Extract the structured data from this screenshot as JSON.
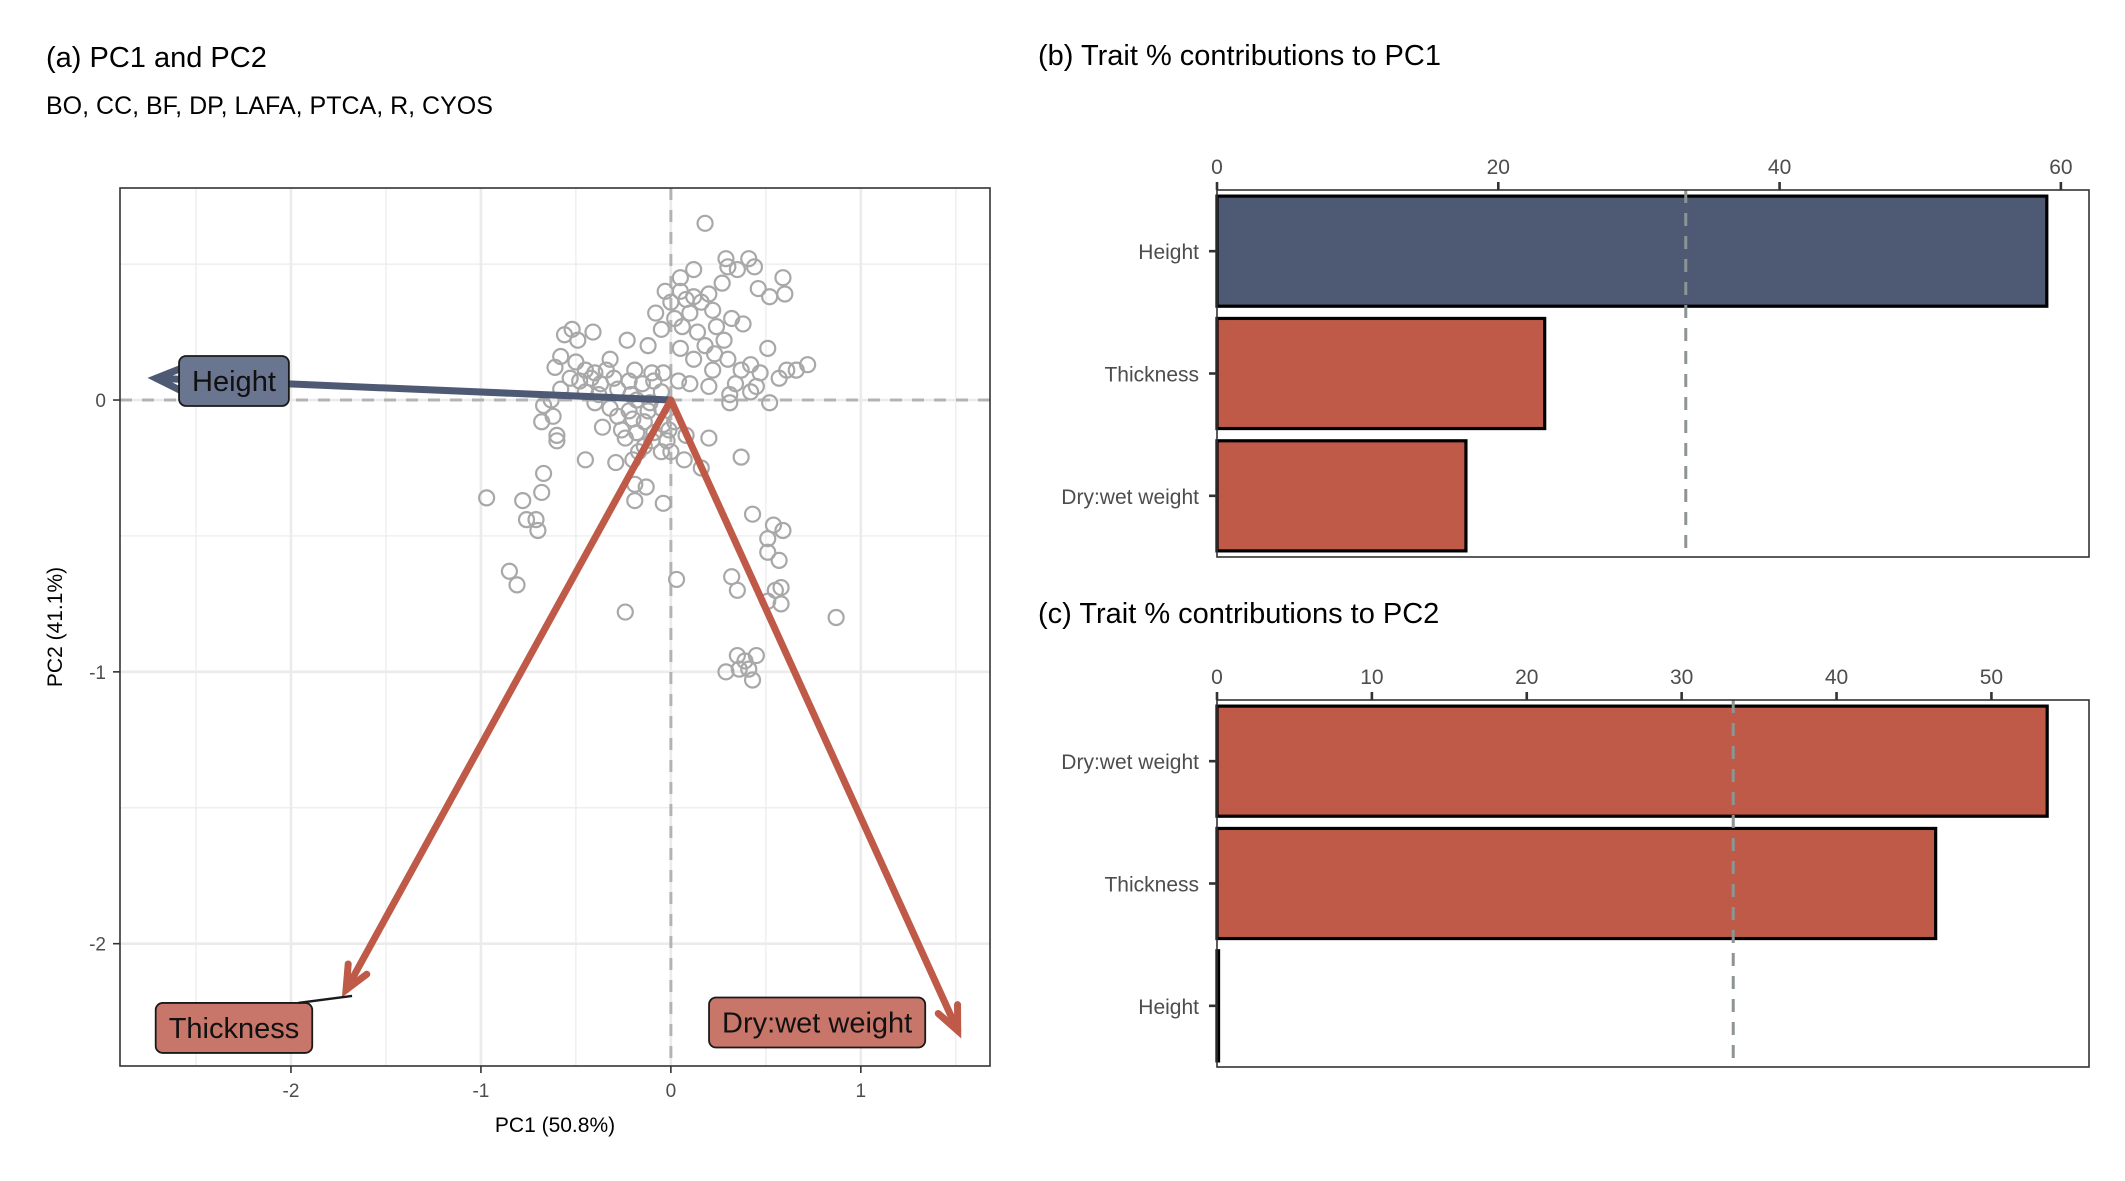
{
  "colors": {
    "pc1_accent": "#4e5a74",
    "pc2_accent": "#c05a48",
    "label_red": "#c9766a",
    "points": "#a8a8a8",
    "grid": "#ebebeb",
    "refline": "#8c9494"
  },
  "chart_data": [
    {
      "panel": "a",
      "type": "scatter",
      "title": "(a) PC1 and PC2",
      "subtitle": "BO, CC, BF, DP, LAFA, PTCA, R, CYOS",
      "xlabel": "PC1 (50.8%)",
      "ylabel": "PC2 (41.1%)",
      "xlim": [
        -2.9,
        1.68
      ],
      "ylim": [
        -2.45,
        0.78
      ],
      "xticks": [
        "-2",
        "-1",
        "0",
        "1"
      ],
      "xtick_values": [
        -2,
        -1,
        0,
        1
      ],
      "yticks": [
        "-2",
        "-1",
        "0"
      ],
      "ytick_values": [
        -2,
        -1,
        0
      ],
      "grid": true,
      "points": [
        [
          0.18,
          0.65
        ],
        [
          0.29,
          0.52
        ],
        [
          0.35,
          0.48
        ],
        [
          0.41,
          0.52
        ],
        [
          0.44,
          0.49
        ],
        [
          0.3,
          0.49
        ],
        [
          0.05,
          0.45
        ],
        [
          0.12,
          0.48
        ],
        [
          0.59,
          0.45
        ],
        [
          0.6,
          0.39
        ],
        [
          0.27,
          0.43
        ],
        [
          0.2,
          0.39
        ],
        [
          0.16,
          0.36
        ],
        [
          0.12,
          0.38
        ],
        [
          0.05,
          0.4
        ],
        [
          0.08,
          0.37
        ],
        [
          0.0,
          0.36
        ],
        [
          -0.03,
          0.4
        ],
        [
          0.22,
          0.33
        ],
        [
          0.32,
          0.3
        ],
        [
          0.46,
          0.41
        ],
        [
          0.52,
          0.38
        ],
        [
          0.1,
          0.32
        ],
        [
          0.02,
          0.3
        ],
        [
          -0.08,
          0.32
        ],
        [
          0.24,
          0.27
        ],
        [
          0.38,
          0.28
        ],
        [
          0.06,
          0.27
        ],
        [
          -0.05,
          0.26
        ],
        [
          0.14,
          0.25
        ],
        [
          0.28,
          0.22
        ],
        [
          0.18,
          0.2
        ],
        [
          -0.52,
          0.26
        ],
        [
          -0.41,
          0.25
        ],
        [
          -0.56,
          0.24
        ],
        [
          -0.49,
          0.22
        ],
        [
          -0.23,
          0.22
        ],
        [
          -0.12,
          0.2
        ],
        [
          0.05,
          0.19
        ],
        [
          0.51,
          0.19
        ],
        [
          0.23,
          0.17
        ],
        [
          -0.58,
          0.16
        ],
        [
          -0.5,
          0.14
        ],
        [
          -0.32,
          0.15
        ],
        [
          0.12,
          0.15
        ],
        [
          0.3,
          0.15
        ],
        [
          0.42,
          0.13
        ],
        [
          0.72,
          0.13
        ],
        [
          0.66,
          0.11
        ],
        [
          -0.61,
          0.12
        ],
        [
          -0.45,
          0.11
        ],
        [
          -0.4,
          0.1
        ],
        [
          -0.34,
          0.11
        ],
        [
          -0.19,
          0.11
        ],
        [
          -0.1,
          0.1
        ],
        [
          -0.04,
          0.1
        ],
        [
          0.22,
          0.11
        ],
        [
          0.37,
          0.11
        ],
        [
          0.47,
          0.1
        ],
        [
          0.61,
          0.11
        ],
        [
          -0.53,
          0.08
        ],
        [
          -0.48,
          0.07
        ],
        [
          -0.42,
          0.08
        ],
        [
          -0.37,
          0.06
        ],
        [
          -0.3,
          0.08
        ],
        [
          -0.22,
          0.07
        ],
        [
          -0.15,
          0.06
        ],
        [
          -0.09,
          0.07
        ],
        [
          0.04,
          0.07
        ],
        [
          0.1,
          0.06
        ],
        [
          0.2,
          0.05
        ],
        [
          0.34,
          0.06
        ],
        [
          0.45,
          0.05
        ],
        [
          0.57,
          0.08
        ],
        [
          -0.58,
          0.04
        ],
        [
          -0.45,
          0.03
        ],
        [
          -0.38,
          0.02
        ],
        [
          -0.28,
          0.04
        ],
        [
          -0.21,
          0.02
        ],
        [
          -0.05,
          0.03
        ],
        [
          0.31,
          0.02
        ],
        [
          0.42,
          0.03
        ],
        [
          -0.63,
          0.0
        ],
        [
          -0.4,
          -0.01
        ],
        [
          -0.18,
          0.0
        ],
        [
          -0.11,
          -0.01
        ],
        [
          0.31,
          -0.01
        ],
        [
          0.52,
          -0.01
        ],
        [
          -0.67,
          -0.02
        ],
        [
          -0.32,
          -0.03
        ],
        [
          -0.22,
          -0.04
        ],
        [
          -0.12,
          -0.04
        ],
        [
          -0.05,
          -0.03
        ],
        [
          -0.62,
          -0.06
        ],
        [
          -0.28,
          -0.06
        ],
        [
          -0.2,
          -0.07
        ],
        [
          -0.14,
          -0.08
        ],
        [
          -0.04,
          -0.09
        ],
        [
          0.02,
          -0.08
        ],
        [
          -0.68,
          -0.08
        ],
        [
          -0.36,
          -0.1
        ],
        [
          -0.26,
          -0.11
        ],
        [
          -0.18,
          -0.12
        ],
        [
          -0.09,
          -0.12
        ],
        [
          -0.01,
          -0.11
        ],
        [
          -0.24,
          -0.14
        ],
        [
          -0.1,
          -0.15
        ],
        [
          -0.02,
          -0.15
        ],
        [
          0.08,
          -0.13
        ],
        [
          -0.14,
          -0.17
        ],
        [
          -0.05,
          -0.19
        ],
        [
          0.0,
          -0.19
        ],
        [
          -0.6,
          -0.13
        ],
        [
          -0.6,
          -0.15
        ],
        [
          -0.17,
          -0.19
        ],
        [
          0.2,
          -0.14
        ],
        [
          -0.45,
          -0.22
        ],
        [
          -0.29,
          -0.23
        ],
        [
          -0.2,
          -0.22
        ],
        [
          0.07,
          -0.22
        ],
        [
          0.37,
          -0.21
        ],
        [
          0.16,
          -0.25
        ],
        [
          -0.67,
          -0.27
        ],
        [
          -0.19,
          -0.31
        ],
        [
          -0.13,
          -0.32
        ],
        [
          -0.68,
          -0.34
        ],
        [
          -0.97,
          -0.36
        ],
        [
          -0.78,
          -0.37
        ],
        [
          -0.19,
          -0.37
        ],
        [
          -0.04,
          -0.38
        ],
        [
          -0.76,
          -0.44
        ],
        [
          -0.71,
          -0.44
        ],
        [
          -0.7,
          -0.48
        ],
        [
          0.43,
          -0.42
        ],
        [
          0.54,
          -0.46
        ],
        [
          0.59,
          -0.48
        ],
        [
          0.51,
          -0.51
        ],
        [
          0.51,
          -0.56
        ],
        [
          0.57,
          -0.59
        ],
        [
          -0.85,
          -0.63
        ],
        [
          -0.81,
          -0.68
        ],
        [
          0.03,
          -0.66
        ],
        [
          0.32,
          -0.65
        ],
        [
          0.35,
          -0.7
        ],
        [
          0.55,
          -0.7
        ],
        [
          0.58,
          -0.69
        ],
        [
          0.51,
          -0.74
        ],
        [
          0.58,
          -0.75
        ],
        [
          -0.24,
          -0.78
        ],
        [
          0.87,
          -0.8
        ],
        [
          0.35,
          -0.94
        ],
        [
          0.39,
          -0.96
        ],
        [
          0.45,
          -0.94
        ],
        [
          0.29,
          -1.0
        ],
        [
          0.36,
          -0.99
        ],
        [
          0.41,
          -0.99
        ],
        [
          0.43,
          -1.03
        ]
      ],
      "loadings": [
        {
          "name": "Height",
          "x": -2.71,
          "y": 0.08,
          "color": "#4e5a74",
          "label_x": -2.3,
          "label_y": 0.07,
          "label_fill": "#6a7590"
        },
        {
          "name": "Thickness",
          "x": -1.71,
          "y": -2.17,
          "color": "#c05a48",
          "label_x": -2.3,
          "label_y": -2.31,
          "label_fill": "#c9766a",
          "leader": true
        },
        {
          "name": "Dry:wet weight",
          "x": 1.51,
          "y": -2.32,
          "color": "#c05a48",
          "label_x": 0.77,
          "label_y": -2.29,
          "label_fill": "#c9766a"
        }
      ]
    },
    {
      "panel": "b",
      "type": "bar",
      "orientation": "horizontal",
      "title": "(b) Trait % contributions to PC1",
      "categories": [
        "Height",
        "Thickness",
        "Dry:wet weight"
      ],
      "values": [
        59.0,
        23.3,
        17.7
      ],
      "bar_colors": [
        "#4e5a74",
        "#c05a48",
        "#c05a48"
      ],
      "xlim": [
        0,
        62
      ],
      "xticks": [
        "0",
        "20",
        "40",
        "60"
      ],
      "xtick_values": [
        0,
        20,
        40,
        60
      ],
      "reference_line": 33.33,
      "axis_position": "top"
    },
    {
      "panel": "c",
      "type": "bar",
      "orientation": "horizontal",
      "title": "(c) Trait % contributions to PC2",
      "categories": [
        "Dry:wet weight",
        "Thickness",
        "Height"
      ],
      "values": [
        53.6,
        46.4,
        0.1
      ],
      "bar_colors": [
        "#c05a48",
        "#c05a48",
        "#c05a48"
      ],
      "xlim": [
        0,
        56.3
      ],
      "xticks": [
        "0",
        "10",
        "20",
        "30",
        "40",
        "50"
      ],
      "xtick_values": [
        0,
        10,
        20,
        30,
        40,
        50
      ],
      "reference_line": 33.33,
      "axis_position": "top"
    }
  ]
}
